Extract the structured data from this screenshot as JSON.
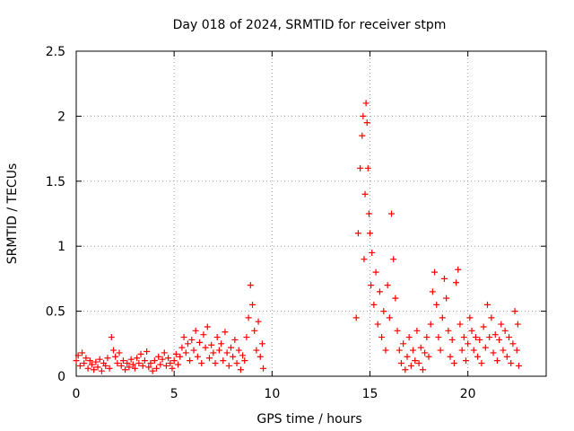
{
  "chart_data": {
    "type": "scatter",
    "title": "Day 018 of 2024, SRMTID for receiver stpm",
    "xlabel": "GPS time / hours",
    "ylabel": "SRMTID / TECUs",
    "xlim": [
      0,
      24.0
    ],
    "ylim": [
      0,
      2.5
    ],
    "xticks": [
      0,
      5,
      10,
      15,
      20
    ],
    "xtick_labels": [
      "0",
      "5",
      "10",
      "15",
      "20"
    ],
    "yticks": [
      0,
      0.5,
      1,
      1.5,
      2,
      2.5
    ],
    "ytick_labels": [
      "0",
      "0.5",
      "1",
      "1.5",
      "2",
      "2.5"
    ],
    "grid": true,
    "marker": "plus",
    "series": [
      {
        "name": "SRMTID",
        "color": "#ff0000",
        "points": [
          [
            0.0,
            0.12
          ],
          [
            0.1,
            0.16
          ],
          [
            0.2,
            0.08
          ],
          [
            0.3,
            0.18
          ],
          [
            0.4,
            0.1
          ],
          [
            0.5,
            0.14
          ],
          [
            0.6,
            0.06
          ],
          [
            0.7,
            0.12
          ],
          [
            0.8,
            0.09
          ],
          [
            0.9,
            0.05
          ],
          [
            1.0,
            0.11
          ],
          [
            1.1,
            0.07
          ],
          [
            1.2,
            0.13
          ],
          [
            1.3,
            0.04
          ],
          [
            1.4,
            0.1
          ],
          [
            1.5,
            0.08
          ],
          [
            1.6,
            0.14
          ],
          [
            1.7,
            0.06
          ],
          [
            1.8,
            0.3
          ],
          [
            1.9,
            0.2
          ],
          [
            2.0,
            0.15
          ],
          [
            2.1,
            0.1
          ],
          [
            2.2,
            0.18
          ],
          [
            2.3,
            0.08
          ],
          [
            2.4,
            0.12
          ],
          [
            2.5,
            0.05
          ],
          [
            2.6,
            0.1
          ],
          [
            2.7,
            0.07
          ],
          [
            2.8,
            0.13
          ],
          [
            2.9,
            0.09
          ],
          [
            3.0,
            0.06
          ],
          [
            3.1,
            0.14
          ],
          [
            3.2,
            0.1
          ],
          [
            3.3,
            0.17
          ],
          [
            3.4,
            0.08
          ],
          [
            3.5,
            0.12
          ],
          [
            3.6,
            0.19
          ],
          [
            3.7,
            0.07
          ],
          [
            3.8,
            0.1
          ],
          [
            3.9,
            0.04
          ],
          [
            4.0,
            0.12
          ],
          [
            4.1,
            0.06
          ],
          [
            4.2,
            0.15
          ],
          [
            4.3,
            0.09
          ],
          [
            4.4,
            0.13
          ],
          [
            4.5,
            0.18
          ],
          [
            4.6,
            0.08
          ],
          [
            4.7,
            0.14
          ],
          [
            4.8,
            0.1
          ],
          [
            4.9,
            0.06
          ],
          [
            5.0,
            0.12
          ],
          [
            5.1,
            0.17
          ],
          [
            5.2,
            0.09
          ],
          [
            5.3,
            0.15
          ],
          [
            5.4,
            0.22
          ],
          [
            5.5,
            0.3
          ],
          [
            5.6,
            0.18
          ],
          [
            5.7,
            0.25
          ],
          [
            5.8,
            0.12
          ],
          [
            5.9,
            0.28
          ],
          [
            6.0,
            0.2
          ],
          [
            6.1,
            0.35
          ],
          [
            6.2,
            0.15
          ],
          [
            6.3,
            0.26
          ],
          [
            6.4,
            0.1
          ],
          [
            6.5,
            0.32
          ],
          [
            6.6,
            0.22
          ],
          [
            6.7,
            0.38
          ],
          [
            6.8,
            0.14
          ],
          [
            6.9,
            0.24
          ],
          [
            7.0,
            0.18
          ],
          [
            7.1,
            0.1
          ],
          [
            7.2,
            0.3
          ],
          [
            7.3,
            0.2
          ],
          [
            7.4,
            0.25
          ],
          [
            7.5,
            0.12
          ],
          [
            7.6,
            0.34
          ],
          [
            7.7,
            0.18
          ],
          [
            7.8,
            0.08
          ],
          [
            7.9,
            0.22
          ],
          [
            8.0,
            0.15
          ],
          [
            8.1,
            0.28
          ],
          [
            8.2,
            0.1
          ],
          [
            8.3,
            0.2
          ],
          [
            8.4,
            0.05
          ],
          [
            8.5,
            0.16
          ],
          [
            8.6,
            0.12
          ],
          [
            8.7,
            0.3
          ],
          [
            8.8,
            0.45
          ],
          [
            8.9,
            0.7
          ],
          [
            9.0,
            0.55
          ],
          [
            9.1,
            0.35
          ],
          [
            9.2,
            0.2
          ],
          [
            9.3,
            0.42
          ],
          [
            9.4,
            0.15
          ],
          [
            9.5,
            0.25
          ],
          [
            9.55,
            0.06
          ],
          [
            14.3,
            0.45
          ],
          [
            14.4,
            1.1
          ],
          [
            14.5,
            1.6
          ],
          [
            14.6,
            1.85
          ],
          [
            14.65,
            2.0
          ],
          [
            14.7,
            0.9
          ],
          [
            14.75,
            1.4
          ],
          [
            14.8,
            2.1
          ],
          [
            14.85,
            1.95
          ],
          [
            14.9,
            1.6
          ],
          [
            14.95,
            1.25
          ],
          [
            15.0,
            1.1
          ],
          [
            15.05,
            0.7
          ],
          [
            15.1,
            0.95
          ],
          [
            15.2,
            0.55
          ],
          [
            15.3,
            0.8
          ],
          [
            15.4,
            0.4
          ],
          [
            15.5,
            0.65
          ],
          [
            15.6,
            0.3
          ],
          [
            15.7,
            0.5
          ],
          [
            15.8,
            0.2
          ],
          [
            15.9,
            0.7
          ],
          [
            16.0,
            0.45
          ],
          [
            16.1,
            1.25
          ],
          [
            16.2,
            0.9
          ],
          [
            16.3,
            0.6
          ],
          [
            16.4,
            0.35
          ],
          [
            16.5,
            0.2
          ],
          [
            16.6,
            0.1
          ],
          [
            16.7,
            0.25
          ],
          [
            16.8,
            0.05
          ],
          [
            16.9,
            0.15
          ],
          [
            17.0,
            0.3
          ],
          [
            17.1,
            0.08
          ],
          [
            17.2,
            0.2
          ],
          [
            17.3,
            0.12
          ],
          [
            17.4,
            0.35
          ],
          [
            17.5,
            0.1
          ],
          [
            17.6,
            0.22
          ],
          [
            17.7,
            0.05
          ],
          [
            17.8,
            0.18
          ],
          [
            17.9,
            0.3
          ],
          [
            18.0,
            0.15
          ],
          [
            18.1,
            0.4
          ],
          [
            18.2,
            0.65
          ],
          [
            18.3,
            0.8
          ],
          [
            18.4,
            0.55
          ],
          [
            18.5,
            0.3
          ],
          [
            18.6,
            0.2
          ],
          [
            18.7,
            0.45
          ],
          [
            18.8,
            0.75
          ],
          [
            18.9,
            0.6
          ],
          [
            19.0,
            0.35
          ],
          [
            19.1,
            0.15
          ],
          [
            19.2,
            0.28
          ],
          [
            19.3,
            0.1
          ],
          [
            19.4,
            0.72
          ],
          [
            19.5,
            0.82
          ],
          [
            19.6,
            0.4
          ],
          [
            19.7,
            0.2
          ],
          [
            19.8,
            0.3
          ],
          [
            19.9,
            0.12
          ],
          [
            20.0,
            0.25
          ],
          [
            20.1,
            0.45
          ],
          [
            20.2,
            0.35
          ],
          [
            20.3,
            0.2
          ],
          [
            20.4,
            0.3
          ],
          [
            20.5,
            0.15
          ],
          [
            20.6,
            0.28
          ],
          [
            20.7,
            0.1
          ],
          [
            20.8,
            0.38
          ],
          [
            20.9,
            0.22
          ],
          [
            21.0,
            0.55
          ],
          [
            21.1,
            0.3
          ],
          [
            21.2,
            0.45
          ],
          [
            21.3,
            0.18
          ],
          [
            21.4,
            0.32
          ],
          [
            21.5,
            0.12
          ],
          [
            21.6,
            0.28
          ],
          [
            21.7,
            0.4
          ],
          [
            21.8,
            0.2
          ],
          [
            21.9,
            0.35
          ],
          [
            22.0,
            0.15
          ],
          [
            22.1,
            0.3
          ],
          [
            22.2,
            0.1
          ],
          [
            22.3,
            0.25
          ],
          [
            22.4,
            0.5
          ],
          [
            22.5,
            0.2
          ],
          [
            22.55,
            0.4
          ],
          [
            22.6,
            0.08
          ]
        ]
      }
    ]
  }
}
